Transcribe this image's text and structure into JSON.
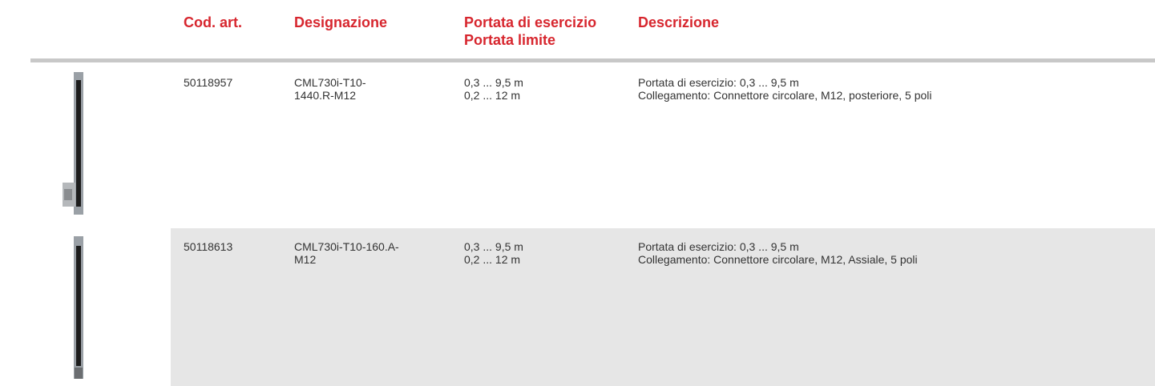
{
  "table": {
    "headers": [
      [
        "Cod. art."
      ],
      [
        "Designazione"
      ],
      [
        "Portata di esercizio",
        "Portata limite"
      ],
      [
        "Descrizione"
      ]
    ],
    "rows": [
      {
        "code": "50118957",
        "designation": [
          "CML730i-T10-",
          "1440.R-M12"
        ],
        "range": [
          "0,3 ... 9,5 m",
          "0,2 ... 12 m"
        ],
        "description": [
          "Portata di esercizio: 0,3 ... 9,5 m",
          "Collegamento: Connettore circolare, M12, posteriore, 5 poli"
        ]
      },
      {
        "code": "50118613",
        "designation": [
          "CML730i-T10-160.A-",
          "M12"
        ],
        "range": [
          "0,3 ... 9,5 m",
          "0,2 ... 12 m"
        ],
        "description": [
          "Portata di esercizio: 0,3 ... 9,5 m",
          "Collegamento: Connettore circolare, M12, Assiale, 5 poli"
        ]
      }
    ]
  }
}
